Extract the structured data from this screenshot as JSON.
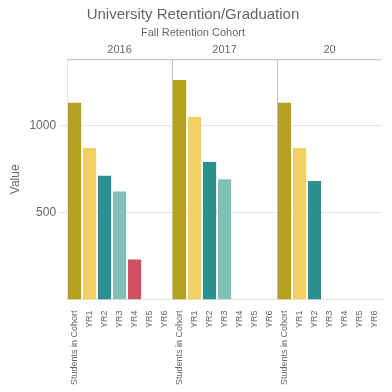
{
  "chart_data": {
    "type": "bar",
    "title": "University Retention/Graduation",
    "subtitle": "Fall Retention Cohort",
    "ylabel": "Value",
    "groups": [
      "2016",
      "2017",
      "20"
    ],
    "categories": [
      "Students in Cohort",
      "YR1",
      "YR2",
      "YR3",
      "YR4",
      "YR5",
      "YR6",
      "Students in Cohort",
      "YR1",
      "YR2",
      "YR3",
      "YR4",
      "YR5",
      "YR6",
      "Students in Cohort",
      "YR1",
      "YR2",
      "YR3",
      "YR4",
      "YR5",
      "YR6"
    ],
    "values": [
      1130,
      870,
      710,
      620,
      230,
      null,
      null,
      1260,
      1050,
      790,
      690,
      null,
      null,
      null,
      1130,
      870,
      680,
      null,
      null,
      null,
      null
    ],
    "colors": [
      "#b5a020",
      "#f0d060",
      "#2a9090",
      "#80c0b8",
      "#d05060",
      "#cccccc",
      "#cccccc",
      "#b5a020",
      "#f0d060",
      "#2a9090",
      "#80c0b8",
      "#d05060",
      "#cccccc",
      "#cccccc",
      "#b5a020",
      "#f0d060",
      "#2a9090",
      "#80c0b8",
      "#d05060",
      "#cccccc",
      "#cccccc"
    ],
    "ylim": [
      0,
      1380
    ],
    "yticks": [
      500,
      1000
    ],
    "grid": true
  }
}
